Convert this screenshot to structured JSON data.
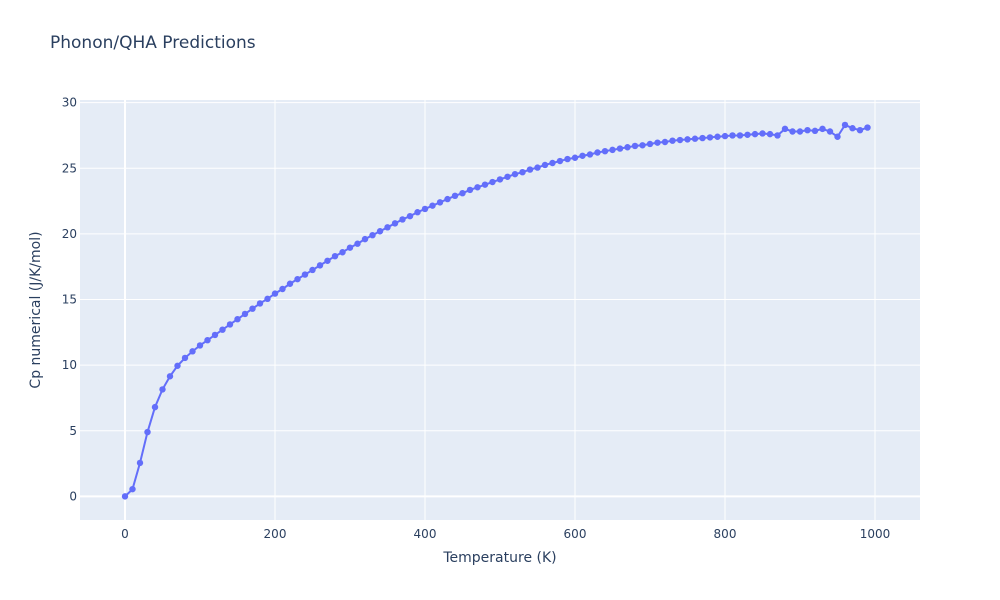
{
  "chart_data": {
    "type": "line",
    "title": "Phonon/QHA Predictions",
    "xlabel": "Temperature (K)",
    "ylabel": "Cp numerical (J/K/mol)",
    "xlim": [
      -60,
      1060
    ],
    "ylim": [
      -1.8,
      30.2
    ],
    "xticks": [
      0,
      200,
      400,
      600,
      800,
      1000
    ],
    "yticks": [
      0,
      5,
      10,
      15,
      20,
      25,
      30
    ],
    "grid": true,
    "colors": {
      "plot_bg": "#E5ECF6",
      "series": "#636EFA",
      "grid": "#ffffff"
    },
    "series": [
      {
        "x": [
          0,
          10,
          20,
          30,
          40,
          50,
          60,
          70,
          80,
          90,
          100,
          110,
          120,
          130,
          140,
          150,
          160,
          170,
          180,
          190,
          200,
          210,
          220,
          230,
          240,
          250,
          260,
          270,
          280,
          290,
          300,
          310,
          320,
          330,
          340,
          350,
          360,
          370,
          380,
          390,
          400,
          410,
          420,
          430,
          440,
          450,
          460,
          470,
          480,
          490,
          500,
          510,
          520,
          530,
          540,
          550,
          560,
          570,
          580,
          590,
          600,
          610,
          620,
          630,
          640,
          650,
          660,
          670,
          680,
          690,
          700,
          710,
          720,
          730,
          740,
          750,
          760,
          770,
          780,
          790,
          800,
          810,
          820,
          830,
          840,
          850,
          860,
          870,
          880,
          890,
          900,
          910,
          920,
          930,
          940,
          950,
          960,
          970,
          980,
          990
        ],
        "y": [
          0,
          0.55,
          2.55,
          4.9,
          6.8,
          8.15,
          9.15,
          9.95,
          10.55,
          11.05,
          11.5,
          11.9,
          12.3,
          12.7,
          13.1,
          13.5,
          13.9,
          14.3,
          14.7,
          15.05,
          15.45,
          15.8,
          16.2,
          16.55,
          16.9,
          17.25,
          17.6,
          17.95,
          18.3,
          18.6,
          18.95,
          19.25,
          19.6,
          19.9,
          20.2,
          20.5,
          20.8,
          21.1,
          21.35,
          21.65,
          21.9,
          22.15,
          22.4,
          22.65,
          22.9,
          23.1,
          23.35,
          23.55,
          23.75,
          23.95,
          24.15,
          24.35,
          24.55,
          24.7,
          24.9,
          25.05,
          25.25,
          25.4,
          25.55,
          25.7,
          25.8,
          25.95,
          26.05,
          26.2,
          26.3,
          26.4,
          26.5,
          26.6,
          26.7,
          26.75,
          26.85,
          26.95,
          27.0,
          27.1,
          27.15,
          27.2,
          27.25,
          27.3,
          27.35,
          27.4,
          27.45,
          27.5,
          27.5,
          27.55,
          27.6,
          27.65,
          27.6,
          27.5,
          28.0,
          27.8,
          27.8,
          27.9,
          27.85,
          28.0,
          27.8,
          27.4,
          28.3,
          28.05,
          27.9,
          28.1
        ]
      }
    ]
  }
}
